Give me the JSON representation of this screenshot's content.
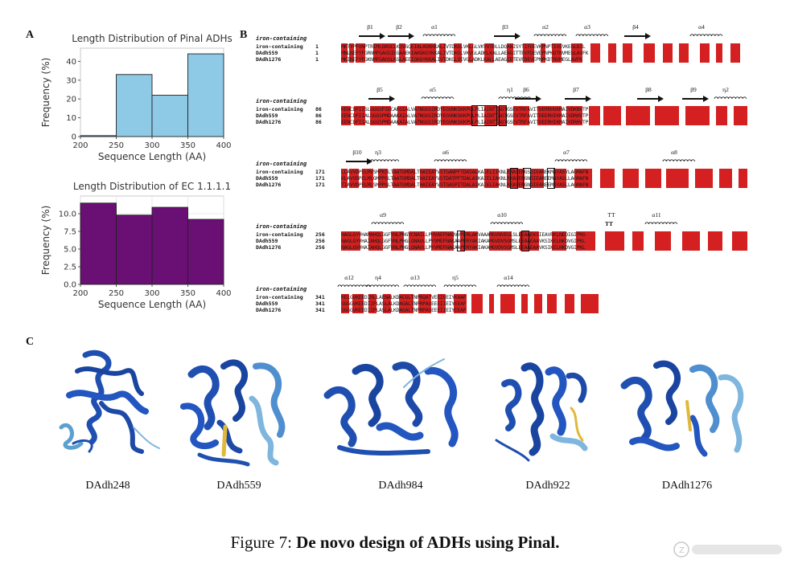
{
  "panels": {
    "a": "A",
    "b": "B",
    "c": "C"
  },
  "chart_data": [
    {
      "type": "bar",
      "title": "Length Distribution of Pinal ADHs",
      "xlabel": "Sequence Length (AA)",
      "ylabel": "Frequency (%)",
      "bins": [
        [
          200,
          250
        ],
        [
          250,
          300
        ],
        [
          300,
          350
        ],
        [
          350,
          400
        ]
      ],
      "values": [
        0.5,
        33,
        22,
        44
      ],
      "xticks": [
        "200",
        "250",
        "300",
        "350",
        "400"
      ],
      "yticks": [
        "0",
        "10",
        "20",
        "30",
        "40"
      ],
      "ylim": [
        0,
        47
      ],
      "color": "#8ec9e6",
      "grid": false
    },
    {
      "type": "bar",
      "title": "Length Distribution of EC 1.1.1.1",
      "xlabel": "Sequence Length (AA)",
      "ylabel": "Frequency (%)",
      "bins": [
        [
          200,
          250
        ],
        [
          250,
          300
        ],
        [
          300,
          350
        ],
        [
          350,
          400
        ]
      ],
      "values": [
        11.5,
        9.8,
        10.9,
        9.2
      ],
      "xticks": [
        "200",
        "250",
        "300",
        "350",
        "400"
      ],
      "yticks": [
        "0.0",
        "2.5",
        "5.0",
        "7.5",
        "10.0"
      ],
      "ylim": [
        0,
        12.5
      ],
      "color": "#6a0f74",
      "grid": true
    }
  ],
  "alignment": {
    "ss_label": "iron-containing",
    "names": [
      "iron-containing",
      "DAdh559",
      "DAdh1276"
    ],
    "blocks": [
      {
        "start": "1",
        "elements": [
          "β1",
          "β2",
          "α1",
          "β3",
          "α2",
          "α3",
          "β4",
          "α4"
        ],
        "seqs": [
          "MKTYPFVNPTRIMLGKGCLKQVGQEIALAGKKKALIVTDKGLVKLGLVKVVTDLLDQANISYTIFDEVKPNPTIVEVKEGLDIL",
          "MNLNEFYFGRNMFGAGSIEGAAEKIAKGKGYKKALIVTDKGLVKVGLADKLKALLAEAGITTEVFDEVEPNPKDTNVMEGLAVFK",
          "MKINEFYFGKNMFGAGSLKGLAEEIGKGYKKALIVTDKGLVEVGLADKLKALLAEAGIDTEVFDEVEPNPKDTNVMEGLAVFK"
        ]
      },
      {
        "start": "86",
        "elements": [
          "β5",
          "α5",
          "η1",
          "β6",
          "β7",
          "β8",
          "β9",
          "η2"
        ],
        "seqs": [
          "KENCDFIISLGGGSPIDCAKGIALVATNGGSIRDYEGVNKSKKPGLPLIAINTTAGTGSEVTRFAVITDERRHVKMAIVDKNVTP",
          "EENCDFIIALGGGSPMDAAKAIALVATNGGSIRDYEGVNKSKKPGLPLIAINTTAGTGSEVTRFAVITDEERHIKMAIVDRHVTP",
          "EENCDFIIALGGGSPMDAAKAIALVATNGGSIRDYEGVNKSKKPGLPLIAINTTAGTGSEVTRFAVITDEERHIKMAIVDRHVTP"
        ]
      },
      {
        "start": "171",
        "elements": [
          "β10",
          "η3",
          "α6",
          "α7",
          "α8"
        ],
        "seqs": [
          "LLAVVDPELMVSMPKSLTAATGMDALTHAIEAYVSTGANPFTDASALKAIELIIKNLKRAVENGSDIEAREKMAYASYLAGMAFN",
          "KLAVVDPELMLGMPPGLTAATGMDALTHAIEAYVSTDATPFTDALAIKAIELIAKNLRKAVENGNDIEAREEMAYASLLAGMAFN",
          "TIAVVDPELMLSMPPGLTAATGMDALTHAIEAYVSTGASPITDALAIKAIELIAKNLRKAVENGNDIEAREEMSYASLLAGMAFN"
        ]
      },
      {
        "start": "256",
        "elements": [
          "α9",
          "α10",
          "TT",
          "α11"
        ],
        "seqs": [
          "NAGLGYVHAMAHQLGGFYNLPHGVCNAILLPHVAEFNAQVVPERLAKVAAAMGVNVEGLSLEEAAEKSIEAVRKLNEDIGIPRG",
          "NAGLGYVHAIAHQLGGFYNLPHGLGNAVLLPYVMEFNAKAAPERYAKIAKAMGVDVSGMSLEEAAEAAVKSIKELNKDVGIPKL",
          "NAGLGVVHAIAHQLGGFYNLPHGLGNAVLLPYVMEFNAKAAPERYAKIAKAMGVDVSGMSLEEAAEAAVKSIKELNKDVGIPKL"
        ]
      },
      {
        "start": "341",
        "elements": [
          "α12",
          "η4",
          "α13",
          "η5",
          "α14"
        ],
        "seqs": [
          "KELGVKEEDIRLLAENALKDACGLTNPRQATVEEIVEIYKAAF",
          "SGGGVKEEDIIPLASLALKDAGALTNPRPASEEEIIEIYEEAF",
          "SGGGVKEEDIIPLASLALKDAGALTNPRPASEEEIIEIYEEAF"
        ]
      }
    ]
  },
  "proteins": [
    "DAdh248",
    "DAdh559",
    "DAdh984",
    "DAdh922",
    "DAdh1276"
  ],
  "caption": {
    "prefix": "Figure 7: ",
    "bold": "De novo design of ADHs using Pinal."
  }
}
